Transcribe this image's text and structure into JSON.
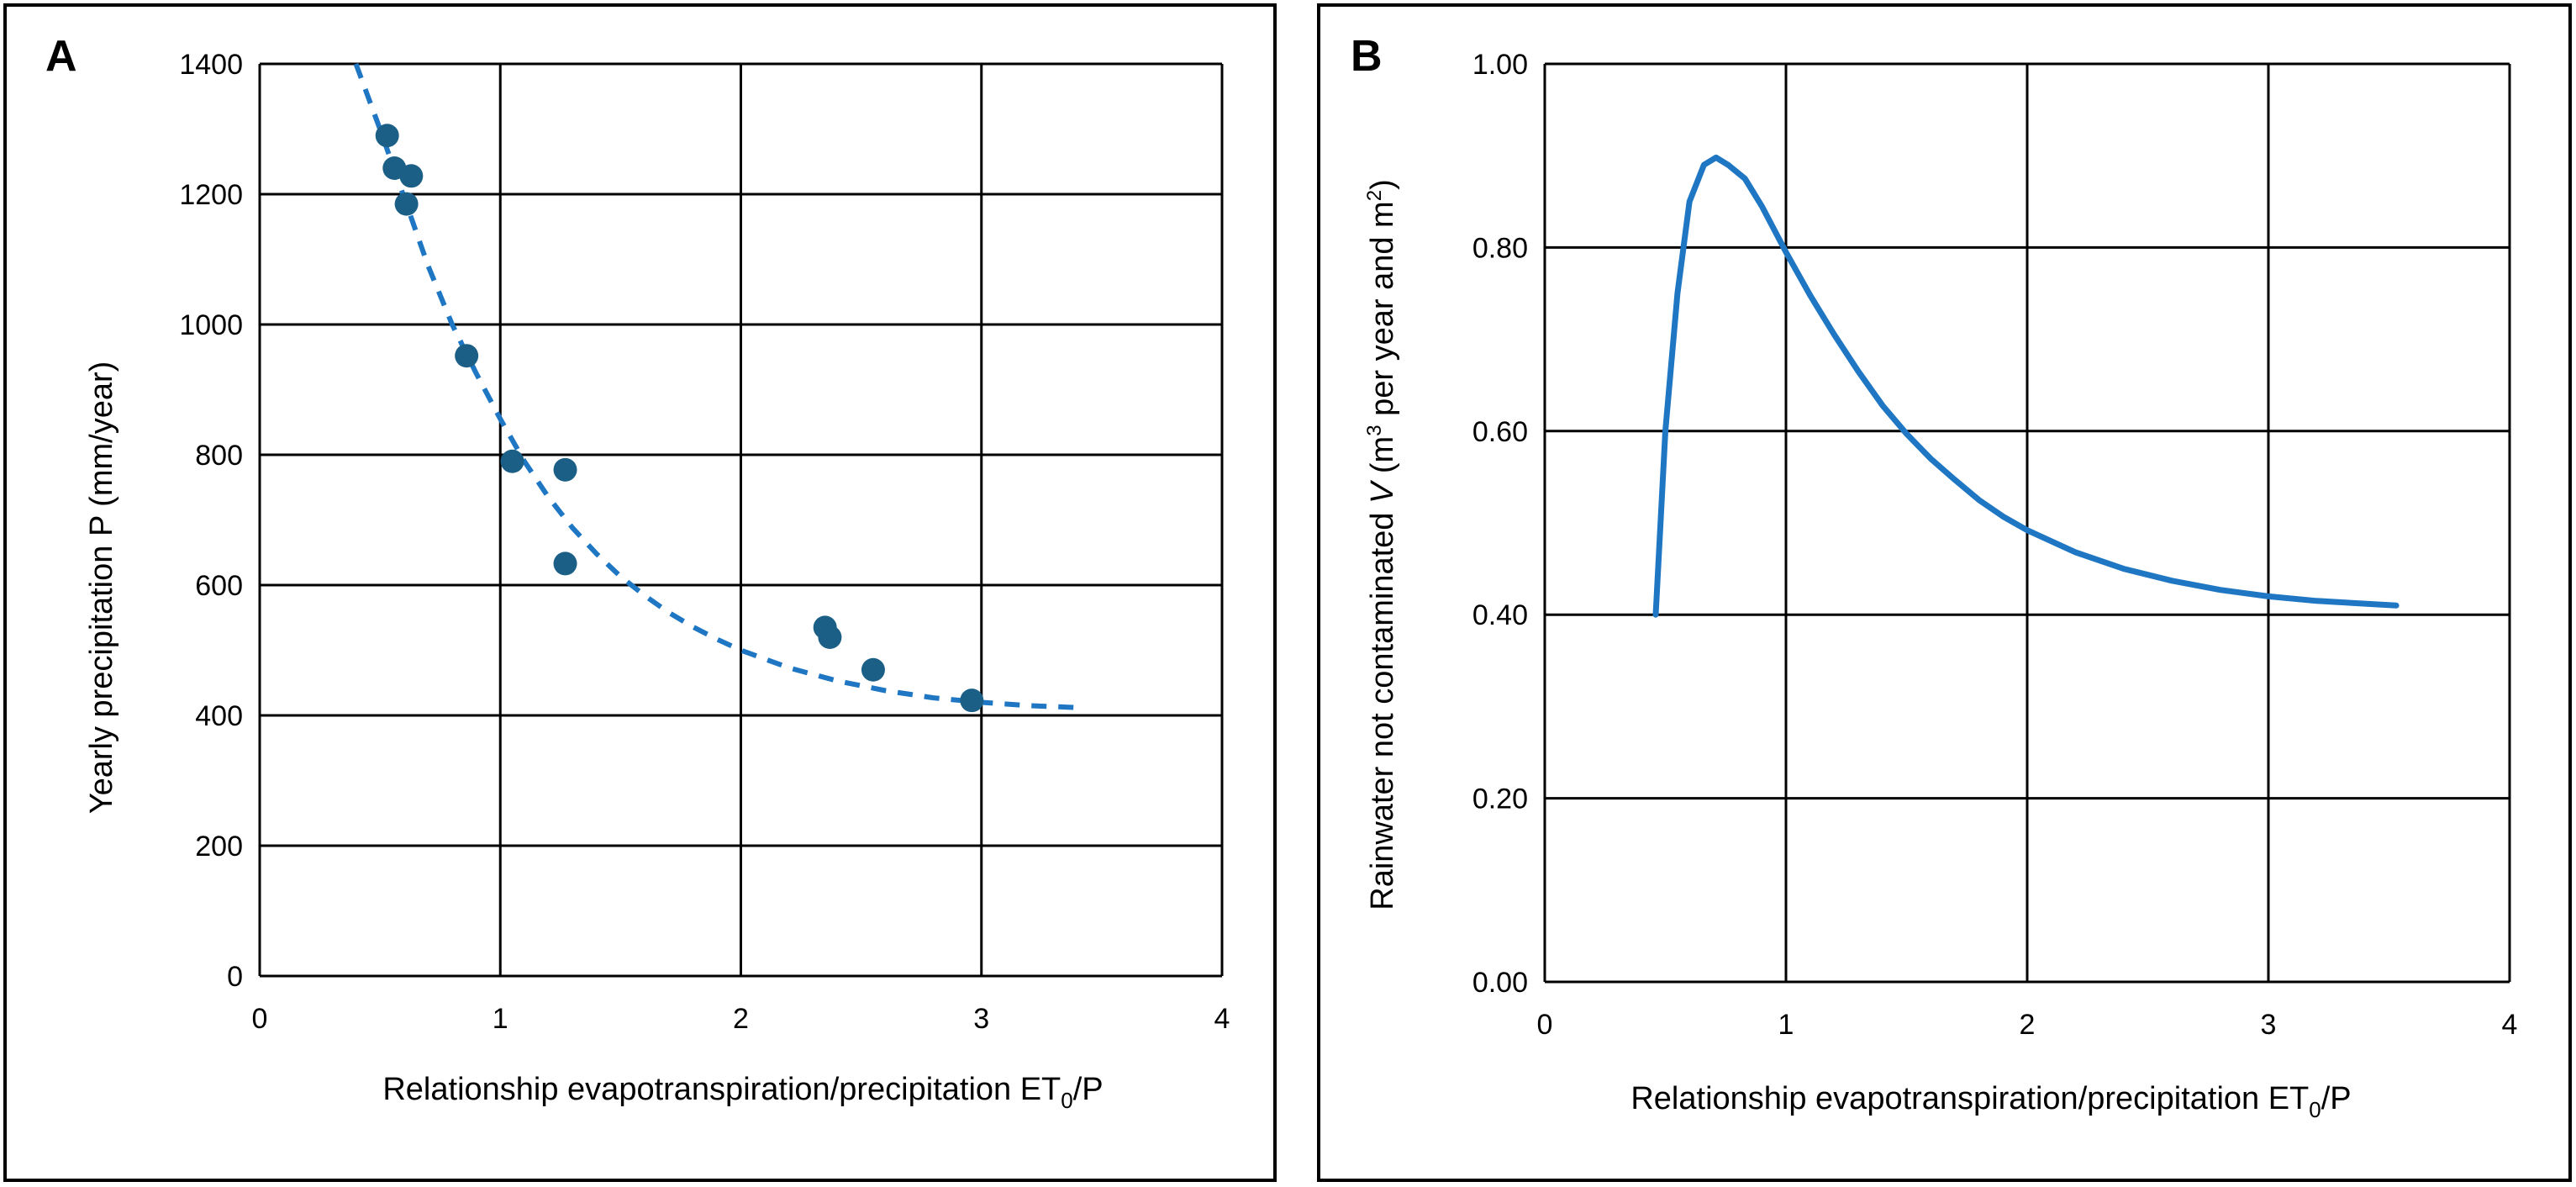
{
  "colors": {
    "line": "#1f77c4",
    "marker": "#1c5f86",
    "grid": "#000000"
  },
  "chart_data": [
    {
      "id": "A",
      "panel_label": "A",
      "type": "scatter",
      "xlabel_main": "Relationship evapotranspiration/precipitation ET",
      "xlabel_sub": "0",
      "xlabel_tail": "/P",
      "ylabel": "Yearly precipitation P (mm/year)",
      "xlim": [
        0,
        4
      ],
      "ylim": [
        0,
        1400
      ],
      "xticks": [
        0,
        1,
        2,
        3,
        4
      ],
      "yticks": [
        0,
        200,
        400,
        600,
        800,
        1000,
        1200,
        1400
      ],
      "grid": true,
      "points": [
        {
          "x": 0.53,
          "y": 1290
        },
        {
          "x": 0.56,
          "y": 1240
        },
        {
          "x": 0.63,
          "y": 1228
        },
        {
          "x": 0.61,
          "y": 1185
        },
        {
          "x": 0.86,
          "y": 952
        },
        {
          "x": 1.05,
          "y": 790
        },
        {
          "x": 1.27,
          "y": 777
        },
        {
          "x": 1.27,
          "y": 633
        },
        {
          "x": 2.35,
          "y": 535
        },
        {
          "x": 2.37,
          "y": 520
        },
        {
          "x": 2.55,
          "y": 470
        },
        {
          "x": 2.96,
          "y": 423
        }
      ],
      "trend": [
        {
          "x": 0.4,
          "y": 1400
        },
        {
          "x": 0.5,
          "y": 1300
        },
        {
          "x": 0.6,
          "y": 1195
        },
        {
          "x": 0.7,
          "y": 1090
        },
        {
          "x": 0.8,
          "y": 1000
        },
        {
          "x": 0.9,
          "y": 925
        },
        {
          "x": 1.0,
          "y": 855
        },
        {
          "x": 1.1,
          "y": 790
        },
        {
          "x": 1.2,
          "y": 735
        },
        {
          "x": 1.3,
          "y": 688
        },
        {
          "x": 1.4,
          "y": 648
        },
        {
          "x": 1.5,
          "y": 613
        },
        {
          "x": 1.6,
          "y": 584
        },
        {
          "x": 1.7,
          "y": 558
        },
        {
          "x": 1.8,
          "y": 536
        },
        {
          "x": 1.9,
          "y": 517
        },
        {
          "x": 2.0,
          "y": 500
        },
        {
          "x": 2.2,
          "y": 473
        },
        {
          "x": 2.4,
          "y": 453
        },
        {
          "x": 2.6,
          "y": 438
        },
        {
          "x": 2.8,
          "y": 427
        },
        {
          "x": 3.0,
          "y": 420
        },
        {
          "x": 3.2,
          "y": 415
        },
        {
          "x": 3.4,
          "y": 412
        }
      ],
      "trend_style": "dashed"
    },
    {
      "id": "B",
      "panel_label": "B",
      "type": "line",
      "xlabel_main": "Relationship evapotranspiration/precipitation ET",
      "xlabel_sub": "0",
      "xlabel_tail": "/P",
      "ylabel_pre": "Rainwater not contaminated ",
      "ylabel_var": "V",
      "ylabel_mid1": "  (m",
      "ylabel_sup1": "3",
      "ylabel_mid2": " per year and m",
      "ylabel_sup2": "2",
      "ylabel_post": ")",
      "xlim": [
        0,
        4
      ],
      "ylim": [
        0.0,
        1.0
      ],
      "xticks": [
        0,
        1,
        2,
        3,
        4
      ],
      "yticks": [
        "0.00",
        "0.20",
        "0.40",
        "0.60",
        "0.80",
        "1.00"
      ],
      "grid": true,
      "series": [
        {
          "name": "V",
          "points": [
            {
              "x": 0.46,
              "y": 0.4
            },
            {
              "x": 0.5,
              "y": 0.6
            },
            {
              "x": 0.55,
              "y": 0.75
            },
            {
              "x": 0.6,
              "y": 0.85
            },
            {
              "x": 0.66,
              "y": 0.89
            },
            {
              "x": 0.71,
              "y": 0.898
            },
            {
              "x": 0.76,
              "y": 0.89
            },
            {
              "x": 0.83,
              "y": 0.875
            },
            {
              "x": 0.9,
              "y": 0.845
            },
            {
              "x": 1.0,
              "y": 0.795
            },
            {
              "x": 1.1,
              "y": 0.748
            },
            {
              "x": 1.2,
              "y": 0.705
            },
            {
              "x": 1.3,
              "y": 0.665
            },
            {
              "x": 1.4,
              "y": 0.628
            },
            {
              "x": 1.5,
              "y": 0.597
            },
            {
              "x": 1.6,
              "y": 0.57
            },
            {
              "x": 1.7,
              "y": 0.547
            },
            {
              "x": 1.8,
              "y": 0.525
            },
            {
              "x": 1.9,
              "y": 0.507
            },
            {
              "x": 2.0,
              "y": 0.492
            },
            {
              "x": 2.2,
              "y": 0.468
            },
            {
              "x": 2.4,
              "y": 0.45
            },
            {
              "x": 2.6,
              "y": 0.437
            },
            {
              "x": 2.8,
              "y": 0.427
            },
            {
              "x": 3.0,
              "y": 0.42
            },
            {
              "x": 3.2,
              "y": 0.415
            },
            {
              "x": 3.4,
              "y": 0.412
            },
            {
              "x": 3.53,
              "y": 0.41
            }
          ]
        }
      ]
    }
  ]
}
